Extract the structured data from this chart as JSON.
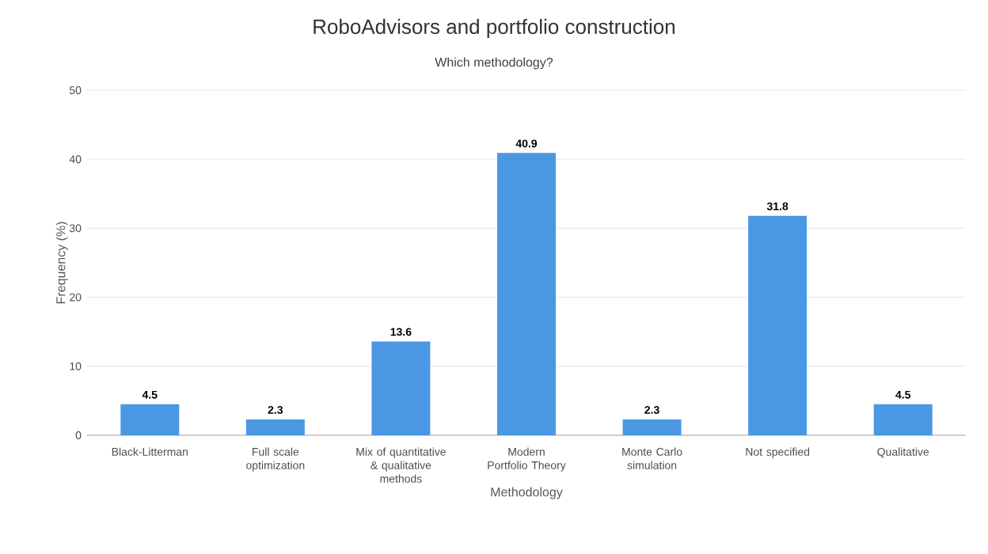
{
  "chart_data": {
    "type": "bar",
    "title": "RoboAdvisors and portfolio construction",
    "subtitle": "Which methodology?",
    "xlabel": "Methodology",
    "ylabel": "Frequency (%)",
    "categories": [
      "Black-Litterman",
      "Full scale optimization",
      "Mix of quantitative & qualitative methods",
      "Modern Portfolio Theory",
      "Monte Carlo simulation",
      "Not specified",
      "Qualitative"
    ],
    "values": [
      4.5,
      2.3,
      13.6,
      40.9,
      2.3,
      31.8,
      4.5
    ],
    "color": "#4a98e3",
    "ylim": [
      0,
      50
    ],
    "yticks": [
      0,
      10,
      20,
      30,
      40,
      50
    ],
    "grid": "y",
    "data_labels": true
  }
}
